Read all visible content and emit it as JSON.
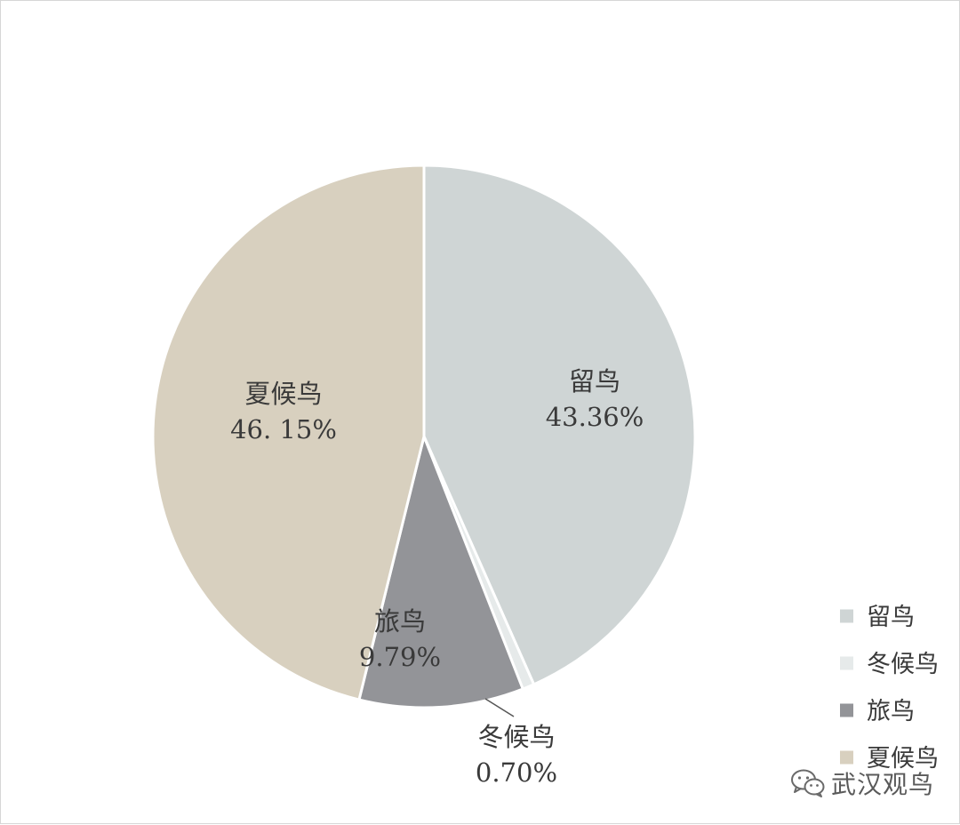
{
  "chart_data": {
    "type": "pie",
    "title": "",
    "unit": "%",
    "slices": [
      {
        "name": "留鸟",
        "value": 43.36,
        "label": "43.36%",
        "color": "#cfd5d5"
      },
      {
        "name": "冬候鸟",
        "value": 0.7,
        "label": "0.70%",
        "color": "#e6eaea"
      },
      {
        "name": "旅鸟",
        "value": 9.79,
        "label": "9.79%",
        "color": "#939498"
      },
      {
        "name": "夏候鸟",
        "value": 46.15,
        "label": "46. 15%",
        "color": "#d8d0bf"
      }
    ],
    "start_angle_deg": 0,
    "direction": "clockwise",
    "legend_position": "bottom-right"
  },
  "watermark": {
    "text": "武汉观鸟",
    "icon": "wechat-icon"
  }
}
